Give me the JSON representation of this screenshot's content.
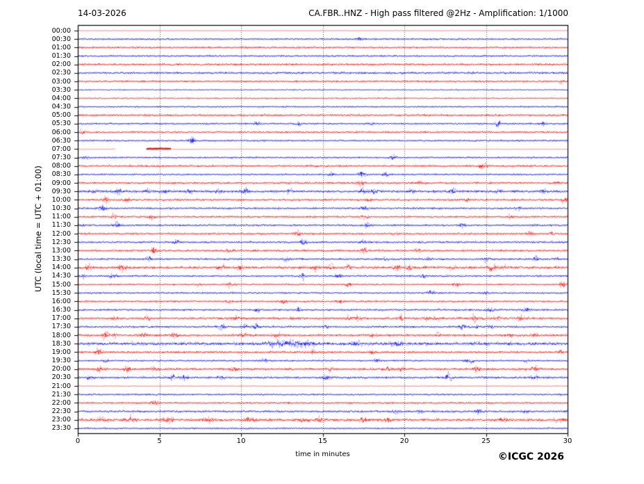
{
  "header": {
    "date": "14-03-2026",
    "title": "CA.FBR..HNZ - High pass filtered @2Hz - Amplification: 1/1000"
  },
  "axes": {
    "y_label": "UTC (local time = UTC + 01:00)",
    "x_label": "time in minutes"
  },
  "footer": {
    "copyright": "©ICGC 2026"
  },
  "chart_data": {
    "type": "line",
    "subtype": "helicorder-day-plot-seismogram",
    "station": "CA.FBR..HNZ",
    "title": "CA.FBR..HNZ - High pass filtered @2Hz - Amplification: 1/1000",
    "date": "14-03-2026",
    "xlabel": "time in minutes",
    "ylabel": "UTC (local time = UTC + 01:00)",
    "x_range_minutes": [
      0,
      30
    ],
    "x_ticks": [
      0,
      5,
      10,
      15,
      20,
      25,
      30
    ],
    "grid_minutes": [
      5,
      10,
      15,
      20,
      25
    ],
    "row_interval_minutes": 30,
    "colors": {
      "even_rows": "#ff0000",
      "odd_rows": "#0000ff",
      "grid": "#555555",
      "frame": "#000000"
    },
    "rows": [
      {
        "t": "00:00",
        "c": "r",
        "a": 0.35,
        "al": 0.45,
        "e": []
      },
      {
        "t": "00:30",
        "c": "b",
        "a": 0.8,
        "e": [
          [
            17.2,
            1.4
          ]
        ]
      },
      {
        "t": "01:00",
        "c": "r",
        "a": 0.9,
        "e": []
      },
      {
        "t": "01:30",
        "c": "b",
        "a": 0.8,
        "e": []
      },
      {
        "t": "02:00",
        "c": "r",
        "a": 1.0,
        "e": []
      },
      {
        "t": "02:30",
        "c": "b",
        "a": 1.0,
        "e": []
      },
      {
        "t": "03:00",
        "c": "r",
        "a": 0.9,
        "e": [
          [
            29.6,
            1.2
          ]
        ]
      },
      {
        "t": "03:30",
        "c": "b",
        "a": 0.65,
        "al": 0.75,
        "e": []
      },
      {
        "t": "04:00",
        "c": "r",
        "a": 0.75,
        "al": 0.8,
        "e": []
      },
      {
        "t": "04:30",
        "c": "b",
        "a": 0.7,
        "e": []
      },
      {
        "t": "05:00",
        "c": "r",
        "a": 1.0,
        "e": []
      },
      {
        "t": "05:30",
        "c": "b",
        "a": 0.8,
        "e": [
          [
            11,
            1.2
          ],
          [
            13.5,
            1.4
          ],
          [
            18,
            1.2
          ],
          [
            25.7,
            2.4
          ],
          [
            28.5,
            1.1
          ]
        ]
      },
      {
        "t": "06:00",
        "c": "r",
        "a": 0.9,
        "e": [
          [
            0.3,
            2.2
          ]
        ]
      },
      {
        "t": "06:30",
        "c": "b",
        "a": 0.8,
        "e": [
          [
            7.0,
            2.8
          ]
        ]
      },
      {
        "t": "07:00",
        "c": "r",
        "a": 0.3,
        "al": 0.4,
        "gap": [
          2.3,
          4.2
        ],
        "seg": [
          4.2,
          5.7
        ],
        "e": []
      },
      {
        "t": "07:30",
        "c": "b",
        "a": 0.8,
        "e": [
          [
            0.5,
            1.0
          ],
          [
            19.3,
            2.0
          ]
        ]
      },
      {
        "t": "08:00",
        "c": "r",
        "a": 1.0,
        "e": [
          [
            24.8,
            2.4
          ]
        ]
      },
      {
        "t": "08:30",
        "c": "b",
        "a": 0.8,
        "e": [
          [
            15.5,
            1.2
          ],
          [
            17.4,
            2.4
          ],
          [
            18.9,
            1.3
          ]
        ]
      },
      {
        "t": "09:00",
        "c": "r",
        "a": 1.0,
        "e": [
          [
            17.3,
            2.4
          ],
          [
            21,
            1.2
          ],
          [
            29.5,
            1.4
          ]
        ]
      },
      {
        "t": "09:30",
        "c": "b",
        "a": 1.15,
        "e": [
          [
            1,
            1.4
          ],
          [
            2.5,
            2.3
          ],
          [
            4.2,
            1.4
          ],
          [
            5.3,
            1.7
          ],
          [
            6.8,
            1.4
          ],
          [
            8.5,
            1.4
          ],
          [
            10.3,
            2.1
          ],
          [
            13,
            1.4
          ],
          [
            17.5,
            2.1
          ],
          [
            18.1,
            1.9
          ],
          [
            20.4,
            1.4
          ],
          [
            23,
            1.4
          ],
          [
            25.8,
            1.2
          ],
          [
            28.5,
            1.1
          ]
        ]
      },
      {
        "t": "10:00",
        "c": "r",
        "a": 1.0,
        "e": [
          [
            1.7,
            1.9
          ],
          [
            3,
            1.3
          ],
          [
            17.8,
            1.7
          ],
          [
            23.8,
            1.4
          ],
          [
            29.8,
            1.7
          ]
        ]
      },
      {
        "t": "10:30",
        "c": "b",
        "a": 0.9,
        "e": [
          [
            1.5,
            2.1
          ],
          [
            17.5,
            1.7
          ],
          [
            27,
            1.2
          ]
        ]
      },
      {
        "t": "11:00",
        "c": "r",
        "a": 0.9,
        "e": [
          [
            2.2,
            1.4
          ],
          [
            4.5,
            2.1
          ],
          [
            17.5,
            1.7
          ],
          [
            26.5,
            1.3
          ]
        ]
      },
      {
        "t": "11:30",
        "c": "b",
        "a": 0.9,
        "e": [
          [
            0.2,
            1.3
          ],
          [
            2.4,
            2.1
          ],
          [
            17.7,
            1.9
          ],
          [
            23.5,
            1.3
          ]
        ]
      },
      {
        "t": "12:00",
        "c": "r",
        "a": 0.9,
        "e": [
          [
            13.5,
            1.9
          ],
          [
            19.5,
            1.3
          ],
          [
            27.7,
            2.3
          ],
          [
            29,
            1.3
          ]
        ]
      },
      {
        "t": "12:30",
        "c": "b",
        "a": 0.9,
        "e": [
          [
            6.0,
            2.1
          ],
          [
            13.8,
            2.1
          ],
          [
            17.5,
            1.9
          ],
          [
            21,
            1.2
          ]
        ]
      },
      {
        "t": "13:00",
        "c": "r",
        "a": 1.0,
        "e": [
          [
            4.7,
            2.3
          ],
          [
            9.3,
            1.4
          ],
          [
            17.5,
            2.1
          ],
          [
            20.8,
            1.4
          ]
        ]
      },
      {
        "t": "13:30",
        "c": "b",
        "a": 0.9,
        "e": [
          [
            4.4,
            1.8
          ],
          [
            12.8,
            1.4
          ],
          [
            18.8,
            2.0
          ],
          [
            21.5,
            1.3
          ],
          [
            25,
            2.1
          ],
          [
            28,
            1.9
          ],
          [
            29.3,
            1.4
          ]
        ]
      },
      {
        "t": "14:00",
        "c": "r",
        "a": 1.25,
        "e": [
          [
            0.6,
            1.9
          ],
          [
            2.7,
            3.3
          ],
          [
            8.8,
            2.1
          ],
          [
            10,
            1.9
          ],
          [
            14.6,
            2.1
          ],
          [
            15.5,
            2.3
          ],
          [
            16.6,
            2.1
          ],
          [
            19.5,
            2.3
          ],
          [
            20.3,
            2.1
          ],
          [
            23,
            1.4
          ],
          [
            25.4,
            1.9
          ],
          [
            26.1,
            1.7
          ]
        ]
      },
      {
        "t": "14:30",
        "c": "b",
        "a": 0.9,
        "e": [
          [
            0.3,
            1.4
          ],
          [
            2.1,
            2.3
          ],
          [
            13.8,
            2.1
          ],
          [
            16,
            1.3
          ],
          [
            21.2,
            1.4
          ]
        ]
      },
      {
        "t": "15:00",
        "c": "r",
        "a": 0.8,
        "e": [
          [
            7.3,
            1.4
          ],
          [
            9.4,
            2.1
          ],
          [
            16.6,
            1.7
          ],
          [
            23.2,
            1.4
          ],
          [
            29.7,
            2.3
          ]
        ]
      },
      {
        "t": "15:30",
        "c": "b",
        "a": 0.8,
        "e": [
          [
            21.6,
            2.1
          ],
          [
            25,
            1.2
          ]
        ]
      },
      {
        "t": "16:00",
        "c": "r",
        "a": 0.9,
        "e": [
          [
            9.3,
            1.4
          ],
          [
            12.6,
            2.3
          ],
          [
            16,
            1.4
          ]
        ]
      },
      {
        "t": "16:30",
        "c": "b",
        "a": 0.9,
        "e": [
          [
            11,
            1.4
          ],
          [
            13.5,
            1.7
          ],
          [
            25.3,
            1.4
          ],
          [
            27.5,
            1.3
          ]
        ]
      },
      {
        "t": "17:00",
        "c": "r",
        "a": 1.1,
        "e": [
          [
            2.2,
            1.4
          ],
          [
            4.3,
            1.7
          ],
          [
            9.7,
            1.4
          ],
          [
            16.5,
            2.3
          ],
          [
            17.2,
            2.1
          ],
          [
            19.8,
            1.9
          ],
          [
            21.3,
            2.1
          ],
          [
            22,
            1.7
          ],
          [
            24.3,
            2.6
          ],
          [
            25.7,
            1.9
          ],
          [
            27.1,
            1.4
          ]
        ]
      },
      {
        "t": "17:30",
        "c": "b",
        "a": 0.9,
        "e": [
          [
            8.8,
            2.1
          ],
          [
            10.2,
            1.9
          ],
          [
            10.9,
            1.7
          ],
          [
            15.2,
            1.3
          ],
          [
            23.5,
            2.3
          ],
          [
            24.5,
            1.4
          ],
          [
            25.3,
            1.3
          ]
        ]
      },
      {
        "t": "18:00",
        "c": "r",
        "a": 1.1,
        "e": [
          [
            1.7,
            2.6
          ],
          [
            2.3,
            2.1
          ],
          [
            4,
            1.7
          ],
          [
            5.9,
            2.1
          ],
          [
            10.2,
            1.4
          ],
          [
            12.2,
            1.4
          ],
          [
            18,
            1.3
          ],
          [
            22,
            1.3
          ],
          [
            26.5,
            1.4
          ],
          [
            28,
            1.3
          ]
        ]
      },
      {
        "t": "18:30",
        "c": "b",
        "a": 1.4,
        "e": [
          [
            12.5,
            1.6,
            0.8
          ],
          [
            13.8,
            1.4,
            0.6
          ],
          [
            17,
            1.5,
            0.3
          ],
          [
            19.5,
            1.2,
            0.3
          ],
          [
            24.5,
            1.2
          ],
          [
            28,
            1.0
          ]
        ]
      },
      {
        "t": "19:00",
        "c": "r",
        "a": 1.0,
        "e": [
          [
            1.3,
            2.3
          ],
          [
            14.5,
            1.9
          ],
          [
            18,
            1.4
          ],
          [
            29.5,
            1.3
          ]
        ]
      },
      {
        "t": "19:30",
        "c": "b",
        "a": 0.8,
        "e": [
          [
            1.7,
            1.9
          ],
          [
            11.5,
            1.2
          ],
          [
            18.3,
            1.3
          ],
          [
            24,
            1.9
          ],
          [
            27.5,
            1.2
          ]
        ]
      },
      {
        "t": "20:00",
        "c": "r",
        "a": 1.1,
        "e": [
          [
            1.3,
            2.1
          ],
          [
            3,
            1.9
          ],
          [
            4.7,
            1.7
          ],
          [
            9.5,
            1.7
          ],
          [
            15.5,
            1.4
          ],
          [
            19,
            2.1
          ],
          [
            19.9,
            1.7
          ],
          [
            24.5,
            2.8
          ],
          [
            28,
            2.1
          ]
        ]
      },
      {
        "t": "20:30",
        "c": "b",
        "a": 1.0,
        "e": [
          [
            0.7,
            1.4
          ],
          [
            5.8,
            2.1
          ],
          [
            6.5,
            1.9
          ],
          [
            8.8,
            1.4
          ],
          [
            15.2,
            2.6
          ],
          [
            22.7,
            2.6
          ],
          [
            28,
            1.4
          ]
        ]
      },
      {
        "t": "21:00",
        "c": "r",
        "a": 0.45,
        "al": 0.5,
        "e": []
      },
      {
        "t": "21:30",
        "c": "b",
        "a": 0.8,
        "e": []
      },
      {
        "t": "22:00",
        "c": "r",
        "a": 0.9,
        "e": [
          [
            4.7,
            1.9
          ]
        ]
      },
      {
        "t": "22:30",
        "c": "b",
        "a": 1.0,
        "e": [
          [
            19.5,
            1.3
          ],
          [
            21,
            1.3
          ],
          [
            24.5,
            1.3
          ],
          [
            27.5,
            1.3
          ]
        ]
      },
      {
        "t": "23:00",
        "c": "r",
        "a": 1.2,
        "e": [
          [
            1.5,
            1.4,
            0.25
          ],
          [
            3.2,
            1.7,
            0.25
          ],
          [
            5.5,
            1.4,
            0.25
          ],
          [
            8,
            1.4,
            0.25
          ],
          [
            10.5,
            1.4,
            0.25
          ],
          [
            13.8,
            1.7,
            0.25
          ],
          [
            14.8,
            1.4,
            0.25
          ],
          [
            17.5,
            1.4,
            0.25
          ],
          [
            19,
            1.4,
            0.25
          ],
          [
            26,
            1.4,
            0.25
          ],
          [
            29.5,
            1.4,
            0.25
          ]
        ]
      },
      {
        "t": "23:30",
        "c": "b",
        "a": 0.75,
        "e": []
      }
    ]
  }
}
